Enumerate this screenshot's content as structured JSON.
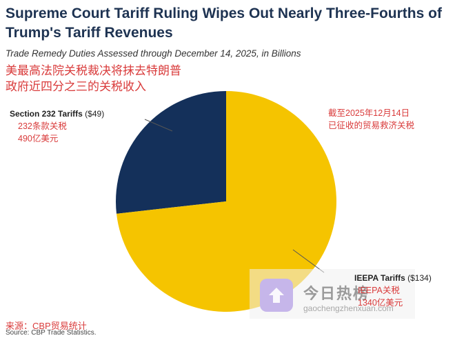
{
  "title": "Supreme Court Tariff Ruling Wipes Out Nearly Three-Fourths of Trump's Tariff Revenues",
  "subtitle": "Trade Remedy Duties Assessed through December 14, 2025, in Billions",
  "cn_title_line1": "美最高法院关税裁决将抹去特朗普",
  "cn_title_line2": "政府近四分之三的关税收入",
  "annotations": {
    "cn_total_line1": "截至2025年12月14日",
    "cn_total_line2": "已征收的贸易救济关税",
    "s232_name": "Section 232 Tariffs",
    "s232_value": "($49)",
    "s232_cn_name": "232条款关税",
    "s232_cn_value": "490亿美元",
    "ieepa_name": "IEEPA Tariffs",
    "ieepa_value": "($134)",
    "ieepa_cn_name": "IEEPA关税",
    "ieepa_cn_value": "1340亿美元"
  },
  "source_cn": "来源：CBP贸易统计",
  "source": "Source: CBP Trade Statistics.",
  "watermark": {
    "text": "今日热榜",
    "url": "gaochengzhenxuan.com"
  },
  "chart_data": {
    "type": "pie",
    "title": "Trade Remedy Duties Assessed through December 14, 2025, in Billions",
    "unit": "billion USD",
    "start_angle": "12 o'clock",
    "direction": "counter-clockwise",
    "slices": [
      {
        "label": "Section 232 Tariffs",
        "value": 49,
        "color": "#14305a"
      },
      {
        "label": "IEEPA Tariffs",
        "value": 134,
        "color": "#f5c400"
      }
    ]
  }
}
